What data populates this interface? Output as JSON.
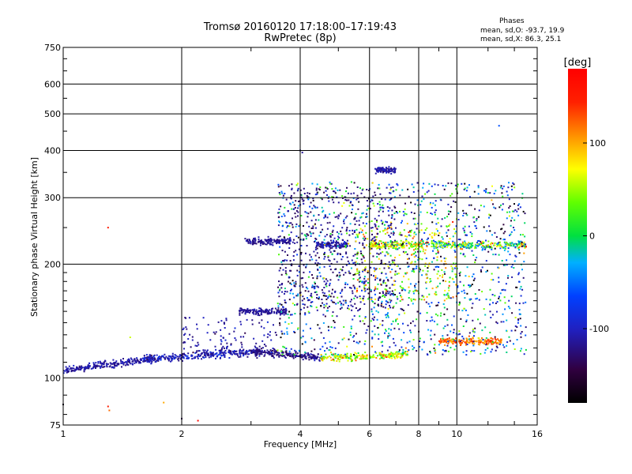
{
  "chart_data": {
    "type": "scatter",
    "title": "Tromsø 20160120 17:18:00–17:19:43",
    "subtitle": "RwPretec (8p)",
    "xlabel": "Frequency [MHz]",
    "ylabel": "Stationary phase Virtual Height [km]",
    "x_scale": "log",
    "y_scale": "log",
    "xlim": [
      1,
      16
    ],
    "ylim": [
      75,
      750
    ],
    "x_ticks": [
      "1",
      "2",
      "4",
      "6",
      "8",
      "10",
      "16"
    ],
    "y_ticks": [
      "75",
      "100",
      "200",
      "300",
      "400",
      "500",
      "600",
      "750"
    ],
    "grid": true,
    "colorbar": {
      "label": "[deg]",
      "range": [
        -180,
        180
      ],
      "ticks": [
        "-100",
        "0",
        "100"
      ]
    },
    "stats": {
      "heading": "Phases",
      "line1": "mean, sd,O: -93.7, 19.9",
      "line2": "mean, sd,X:  86.3, 25.1"
    },
    "traces": [
      {
        "x0": 1.0,
        "x1": 1.7,
        "h0": 105,
        "h1": 112,
        "phase_mean": -110,
        "phase_sd": 15
      },
      {
        "x0": 1.6,
        "x1": 3.2,
        "h0": 112,
        "h1": 118,
        "phase_mean": -105,
        "phase_sd": 25
      },
      {
        "x0": 3.0,
        "x1": 4.5,
        "h0": 118,
        "h1": 113,
        "phase_mean": -120,
        "phase_sd": 15
      },
      {
        "x0": 4.5,
        "x1": 7.5,
        "h0": 113,
        "h1": 115,
        "phase_mean": 60,
        "phase_sd": 60
      },
      {
        "x0": 2.8,
        "x1": 3.7,
        "h0": 150,
        "h1": 150,
        "phase_mean": -115,
        "phase_sd": 10
      },
      {
        "x0": 2.9,
        "x1": 3.8,
        "h0": 230,
        "h1": 230,
        "phase_mean": -115,
        "phase_sd": 10
      },
      {
        "x0": 4.4,
        "x1": 5.3,
        "h0": 225,
        "h1": 225,
        "phase_mean": -110,
        "phase_sd": 20
      },
      {
        "x0": 6.0,
        "x1": 8.0,
        "h0": 225,
        "h1": 225,
        "phase_mean": 60,
        "phase_sd": 50
      },
      {
        "x0": 8.0,
        "x1": 15.0,
        "h0": 225,
        "h1": 225,
        "phase_mean": 20,
        "phase_sd": 100
      },
      {
        "x0": 6.2,
        "x1": 7.0,
        "h0": 355,
        "h1": 355,
        "phase_mean": -110,
        "phase_sd": 15
      },
      {
        "x0": 9.0,
        "x1": 13.0,
        "h0": 125,
        "h1": 125,
        "phase_mean": 120,
        "phase_sd": 30
      }
    ],
    "clouds": [
      {
        "x0": 3.5,
        "x1": 15.0,
        "h0": 115,
        "h1": 330,
        "phase_mean": -60,
        "phase_sd": 110
      },
      {
        "x0": 5.5,
        "x1": 10.0,
        "h0": 160,
        "h1": 260,
        "phase_mean": 60,
        "phase_sd": 60
      },
      {
        "x0": 2.0,
        "x1": 3.5,
        "h0": 112,
        "h1": 145,
        "phase_mean": -110,
        "phase_sd": 20
      },
      {
        "x0": 3.5,
        "x1": 7.0,
        "h0": 150,
        "h1": 320,
        "phase_mean": -120,
        "phase_sd": 20
      }
    ],
    "isolated_points": [
      {
        "x": 1.0,
        "h": 85,
        "phase": -160
      },
      {
        "x": 1.3,
        "h": 250,
        "phase": 150
      },
      {
        "x": 1.3,
        "h": 84,
        "phase": 150
      },
      {
        "x": 1.31,
        "h": 82,
        "phase": 120
      },
      {
        "x": 1.48,
        "h": 128,
        "phase": 60
      },
      {
        "x": 1.8,
        "h": 86,
        "phase": 100
      },
      {
        "x": 2.0,
        "h": 78,
        "phase": -140
      },
      {
        "x": 2.2,
        "h": 77,
        "phase": 170
      },
      {
        "x": 12.8,
        "h": 465,
        "phase": -60
      },
      {
        "x": 4.0,
        "h": 400,
        "phase": -110
      },
      {
        "x": 4.05,
        "h": 395,
        "phase": -115
      }
    ]
  }
}
